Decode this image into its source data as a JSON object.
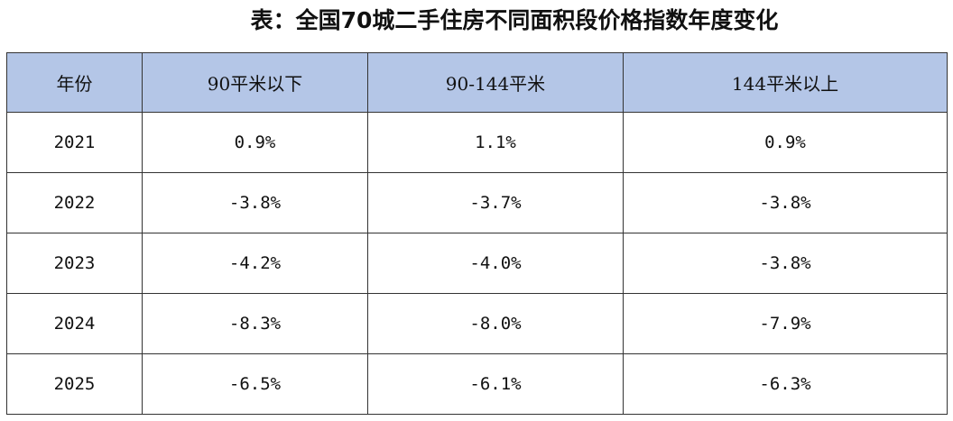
{
  "title": "表：全国70城二手住房不同面积段价格指数年度变化",
  "table": {
    "header": [
      "年份",
      "90平米以下",
      "90-144平米",
      "144平米以上"
    ],
    "rows": [
      [
        "2021",
        "0.9%",
        "1.1%",
        "0.9%"
      ],
      [
        "2022",
        "-3.8%",
        "-3.7%",
        "-3.8%"
      ],
      [
        "2023",
        "-4.2%",
        "-4.0%",
        "-3.8%"
      ],
      [
        "2024",
        "-8.3%",
        "-8.0%",
        "-7.9%"
      ],
      [
        "2025",
        "-6.5%",
        "-6.1%",
        "-6.3%"
      ]
    ]
  }
}
